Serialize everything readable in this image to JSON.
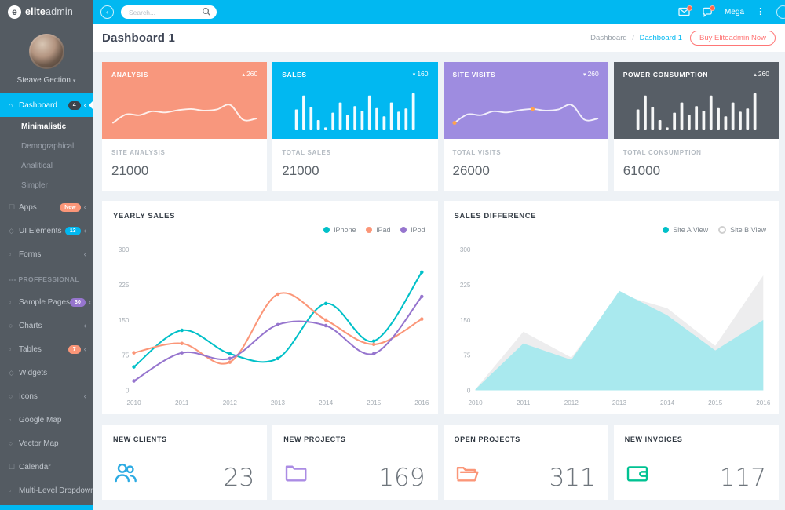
{
  "brand": {
    "mark": "e",
    "bold": "elite",
    "light": "admin"
  },
  "topbar": {
    "search_placeholder": "Search...",
    "mega_label": "Mega"
  },
  "user": {
    "name": "Steave Gection"
  },
  "sidebar": {
    "items": [
      {
        "label": "Dashboard",
        "icon": "dashboard",
        "badge": "4",
        "badge_bg": "#3c4349",
        "chevron": true,
        "active": true
      },
      {
        "label": "Minimalistic",
        "sub": true,
        "current": true
      },
      {
        "label": "Demographical",
        "sub": true
      },
      {
        "label": "Analitical",
        "sub": true
      },
      {
        "label": "Simpler",
        "sub": true
      },
      {
        "label": "Apps",
        "icon": "apps",
        "badge": "New",
        "badge_bg": "#fb9678",
        "chevron": true
      },
      {
        "label": "UI Elements",
        "icon": "ui-elements",
        "badge": "13",
        "badge_bg": "#01b8f1",
        "chevron": true
      },
      {
        "label": "Forms",
        "icon": "forms",
        "chevron": true
      },
      {
        "label": "--- PROFFESSIONAL",
        "section": true
      },
      {
        "label": "Sample Pages",
        "icon": "sample-pages",
        "badge": "30",
        "badge_bg": "#9675ce",
        "chevron": true
      },
      {
        "label": "Charts",
        "icon": "charts",
        "chevron": true
      },
      {
        "label": "Tables",
        "icon": "tables",
        "badge": "7",
        "badge_bg": "#fb9678",
        "chevron": true
      },
      {
        "label": "Widgets",
        "icon": "widgets"
      },
      {
        "label": "Icons",
        "icon": "icons",
        "chevron": true
      },
      {
        "label": "Google Map",
        "icon": "google-map"
      },
      {
        "label": "Vector Map",
        "icon": "vector-map"
      },
      {
        "label": "Calendar",
        "icon": "calendar"
      },
      {
        "label": "Multi-Level Dropdown",
        "icon": "multi-level",
        "chevron": true
      }
    ],
    "icon_glyphs": {
      "dashboard": "⌂",
      "apps": "☐",
      "ui-elements": "◇",
      "forms": "▫",
      "sample-pages": "▫",
      "charts": "○",
      "tables": "▫",
      "widgets": "◇",
      "icons": "○",
      "google-map": "▫",
      "vector-map": "○",
      "calendar": "☐",
      "multi-level": "▫"
    }
  },
  "page": {
    "title": "Dashboard 1",
    "breadcrumb_root": "Dashboard",
    "breadcrumb_sep": "/",
    "breadcrumb_current": "Dashboard 1",
    "buy_button": "Buy Eliteadmin Now"
  },
  "trend_glyphs": {
    "up": "▴",
    "down": "▾"
  },
  "stat_cards": [
    {
      "title": "ANALYSIS",
      "trend": "up",
      "delta": "260",
      "bg": "#f8977d",
      "spark": "line",
      "spark_id": "analysis_spark",
      "footer_label": "SITE ANALYSIS",
      "footer_value": "21000"
    },
    {
      "title": "SALES",
      "trend": "down",
      "delta": "160",
      "bg": "#01b8f1",
      "spark": "bars",
      "spark_id": "sales_spark",
      "footer_label": "TOTAL SALES",
      "footer_value": "21000"
    },
    {
      "title": "SITE VISITS",
      "trend": "down",
      "delta": "260",
      "bg": "#9e8ce0",
      "spark": "line-dots",
      "spark_id": "visits_spark",
      "footer_label": "TOTAL VISITS",
      "footer_value": "26000"
    },
    {
      "title": "POWER CONSUMPTION",
      "trend": "up",
      "delta": "260",
      "bg": "#575e66",
      "spark": "bars",
      "spark_id": "power_spark",
      "footer_label": "TOTAL CONSUMPTION",
      "footer_value": "61000"
    }
  ],
  "mini_cards": [
    {
      "label": "NEW CLIENTS",
      "value": "23",
      "icon": "users",
      "color": "#2cabe3"
    },
    {
      "label": "NEW PROJECTS",
      "value": "169",
      "icon": "folder",
      "color": "#ab8ce4"
    },
    {
      "label": "OPEN PROJECTS",
      "value": "311",
      "icon": "folder-open",
      "color": "#fb9678"
    },
    {
      "label": "NEW INVOICES",
      "value": "117",
      "icon": "wallet",
      "color": "#00c292"
    }
  ],
  "chart_data": [
    {
      "id": "yearly_sales",
      "type": "line",
      "title": "YEARLY SALES",
      "x": [
        2010,
        2011,
        2012,
        2013,
        2014,
        2015,
        2016
      ],
      "ylim": [
        0,
        300
      ],
      "yticks": [
        0,
        75,
        150,
        225,
        300
      ],
      "grid": false,
      "legend_position": "top-right",
      "series": [
        {
          "name": "iPhone",
          "color": "#01c0c8",
          "values": [
            50,
            128,
            78,
            68,
            185,
            105,
            252
          ]
        },
        {
          "name": "iPad",
          "color": "#fb9678",
          "values": [
            80,
            100,
            60,
            205,
            150,
            98,
            152
          ]
        },
        {
          "name": "iPod",
          "color": "#9675ce",
          "values": [
            20,
            80,
            68,
            140,
            138,
            78,
            200
          ]
        }
      ]
    },
    {
      "id": "sales_difference",
      "type": "area",
      "title": "SALES DIFFERENCE",
      "x": [
        2010,
        2011,
        2012,
        2013,
        2014,
        2015,
        2016
      ],
      "ylim": [
        0,
        300
      ],
      "yticks": [
        0,
        75,
        150,
        225,
        300
      ],
      "grid": false,
      "legend_position": "top-right",
      "series": [
        {
          "name": "Site B View",
          "fill": "#ededee",
          "values": [
            2,
            125,
            70,
            205,
            175,
            95,
            245
          ]
        },
        {
          "name": "Site A View",
          "fill": "#a9e9ee",
          "values": [
            2,
            100,
            65,
            212,
            160,
            85,
            150
          ]
        }
      ],
      "legend": [
        {
          "name": "Site A View",
          "type": "dot",
          "color": "#01c0c8"
        },
        {
          "name": "Site B View",
          "type": "ring",
          "color": "#d0d0d0"
        }
      ]
    },
    {
      "id": "analysis_spark",
      "type": "line-spark",
      "values": [
        20,
        42,
        40,
        50,
        47,
        53,
        56,
        52,
        55,
        67,
        28,
        31
      ]
    },
    {
      "id": "sales_spark",
      "type": "bar-spark",
      "values": [
        45,
        75,
        50,
        22,
        6,
        38,
        60,
        33,
        52,
        42,
        75,
        48,
        30,
        60,
        40,
        47,
        80
      ]
    },
    {
      "id": "visits_spark",
      "type": "line-spark",
      "dots": [
        0,
        6
      ],
      "dot_color": "#ffa24d",
      "values": [
        20,
        42,
        40,
        50,
        47,
        53,
        56,
        52,
        55,
        67,
        28,
        31
      ]
    },
    {
      "id": "power_spark",
      "type": "bar-spark",
      "values": [
        45,
        75,
        50,
        22,
        6,
        38,
        60,
        33,
        52,
        42,
        75,
        48,
        30,
        60,
        40,
        47,
        80
      ]
    }
  ]
}
